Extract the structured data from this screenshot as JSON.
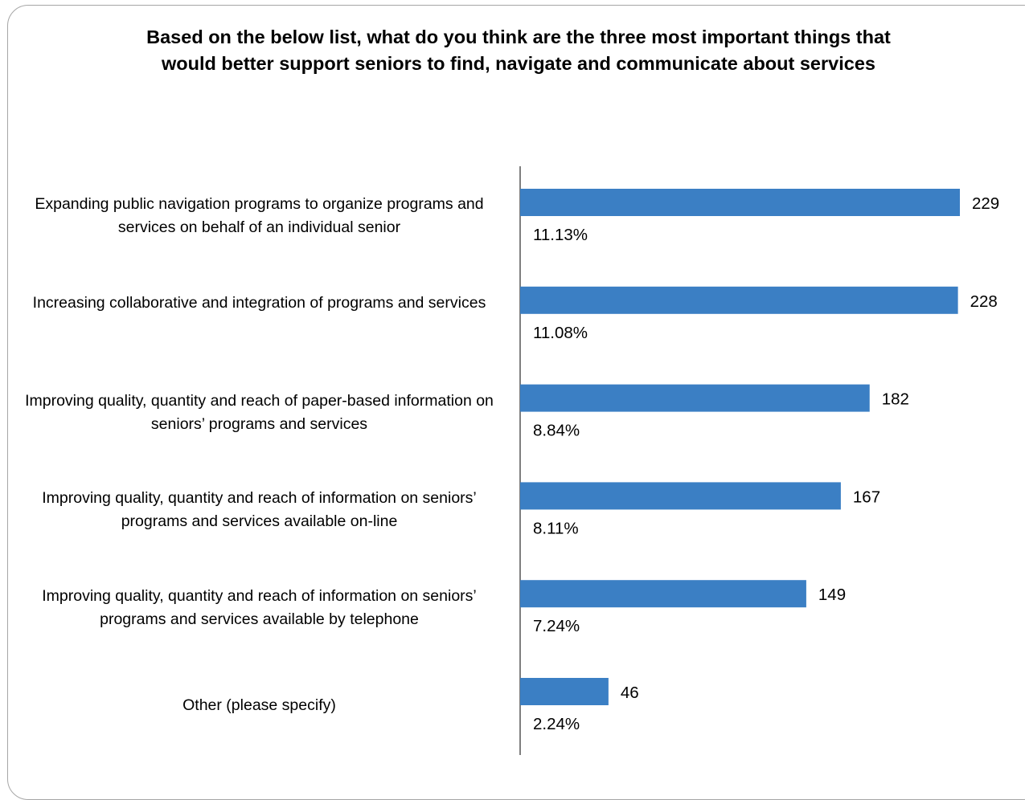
{
  "title": "Based on the below list, what do you think are the three most important things that would better support seniors to find, navigate and communicate about services",
  "chart_data": {
    "type": "bar",
    "orientation": "horizontal",
    "title": "Based on the below list, what do you think are the three most important things that would better support seniors to find, navigate and communicate about services",
    "xlabel": "",
    "ylabel": "",
    "grid": false,
    "legend": "none",
    "bar_color": "#3b7fc4",
    "categories": [
      "Expanding public navigation programs to organize programs and services on behalf of an individual senior",
      "Increasing collaborative and integration of programs and services",
      "Improving quality, quantity and reach of paper-based information on seniors’ programs and services",
      "Improving quality, quantity and reach of information on seniors’ programs and services available on-line",
      "Improving quality, quantity and reach of information on seniors’ programs and services available by telephone",
      "Other (please specify)"
    ],
    "values": [
      229,
      228,
      182,
      167,
      149,
      46
    ],
    "value_labels": [
      "229",
      "228",
      "182",
      "167",
      "149",
      "46"
    ],
    "percent_labels": [
      "11.13%",
      "11.08%",
      "8.84%",
      "8.11%",
      "7.24%",
      "2.24%"
    ]
  }
}
